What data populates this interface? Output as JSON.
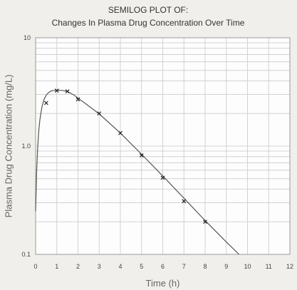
{
  "chart_data": {
    "type": "scatter",
    "title": "SEMILOG PLOT OF:",
    "subtitle": "Changes In Plasma Drug Concentration Over Time",
    "xlabel": "Time (h)",
    "ylabel": "Plasma Drug Concentration (mg/L)",
    "y_scale": "log",
    "xlim": [
      0,
      12
    ],
    "ylim": [
      0.1,
      10
    ],
    "grid": true,
    "x_ticks": [
      "0",
      "1",
      "2",
      "3",
      "4",
      "5",
      "6",
      "7",
      "8",
      "9",
      "10",
      "11",
      "12"
    ],
    "y_ticks": [
      "0.1",
      "1.0",
      "10"
    ],
    "points": {
      "marker": "x",
      "x": [
        0.5,
        1,
        1.5,
        2,
        3,
        4,
        5,
        6,
        7,
        8
      ],
      "y": [
        2.5,
        3.25,
        3.2,
        2.7,
        2.0,
        1.32,
        0.82,
        0.51,
        0.31,
        0.2
      ]
    },
    "fitted_curve": {
      "style": "line",
      "x": [
        0,
        0.05,
        0.1,
        0.15,
        0.2,
        0.3,
        0.4,
        0.5,
        0.6,
        0.7,
        0.8,
        0.9,
        1.0,
        1.1,
        1.2,
        1.3,
        1.4,
        1.5,
        1.6,
        1.8,
        2.0,
        2.5,
        3,
        4,
        5,
        6,
        7,
        8,
        9,
        9.6
      ],
      "y": [
        0.25,
        0.6,
        1.0,
        1.4,
        1.75,
        2.3,
        2.7,
        2.95,
        3.1,
        3.2,
        3.25,
        3.27,
        3.28,
        3.28,
        3.27,
        3.25,
        3.22,
        3.18,
        3.12,
        2.97,
        2.77,
        2.35,
        1.98,
        1.32,
        0.84,
        0.53,
        0.33,
        0.205,
        0.13,
        0.1
      ]
    },
    "colors": {
      "background": "#f0efec",
      "plot_area": "#fdfdfd",
      "grid": "#d2d2d2",
      "frame": "#9a9a9a",
      "line": "#555555",
      "marker": "#222222"
    }
  }
}
